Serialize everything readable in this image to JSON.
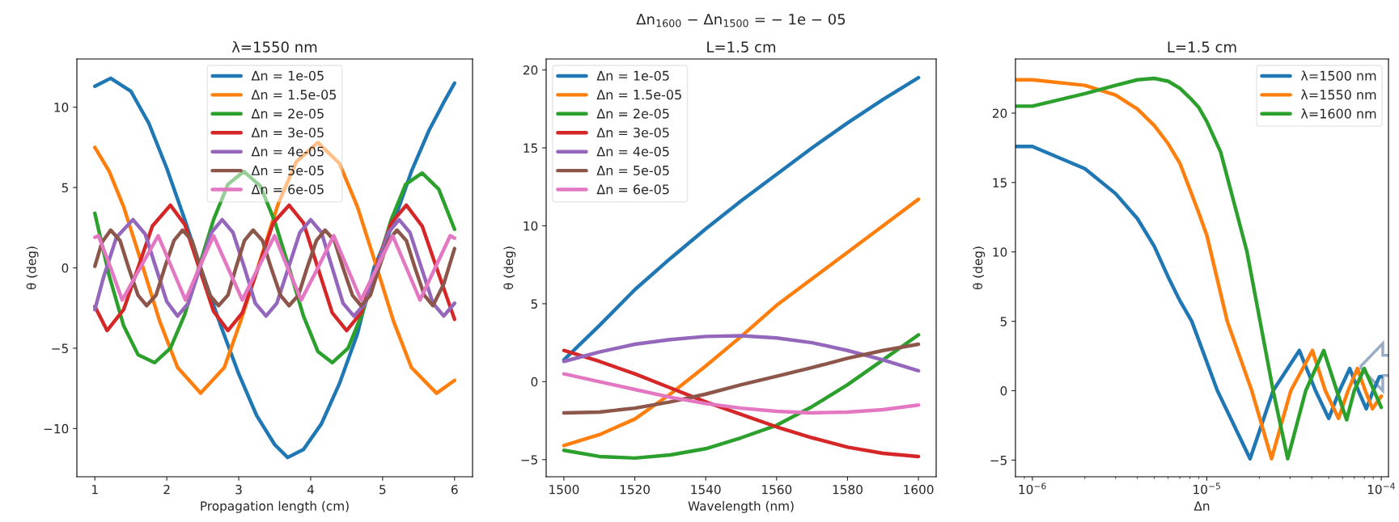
{
  "chart_data": [
    {
      "type": "line",
      "title": "λ=1550 nm",
      "xlabel": "Propagation length (cm)",
      "ylabel": "θ (deg)",
      "xlim": [
        0.75,
        6.25
      ],
      "ylim": [
        -13,
        13
      ],
      "xticks": [
        1,
        2,
        3,
        4,
        5,
        6
      ],
      "yticks": [
        -10,
        -5,
        0,
        5,
        10
      ],
      "legend": "top",
      "series": [
        {
          "name": "Δn = 1e-05",
          "color": "#1f77b4",
          "x": [
            1.0,
            1.22,
            1.5,
            1.75,
            2.0,
            2.25,
            2.47,
            2.75,
            3.0,
            3.25,
            3.5,
            3.68,
            3.9,
            4.15,
            4.4,
            4.65,
            4.88,
            5.15,
            5.4,
            5.65,
            5.85,
            6.0
          ],
          "values": [
            11.3,
            11.8,
            11.0,
            9.0,
            6.2,
            3.0,
            0.0,
            -3.6,
            -6.6,
            -9.2,
            -11.0,
            -11.8,
            -11.3,
            -9.7,
            -7.2,
            -4.1,
            0.0,
            2.8,
            6.0,
            8.6,
            10.3,
            11.5
          ]
        },
        {
          "name": "Δn = 1.5e-05",
          "color": "#ff7f0e",
          "x": [
            1.0,
            1.2,
            1.4,
            1.65,
            1.9,
            2.15,
            2.47,
            2.8,
            3.05,
            3.3,
            3.55,
            3.8,
            4.1,
            4.4,
            4.65,
            4.9,
            5.15,
            5.4,
            5.75,
            6.0
          ],
          "values": [
            7.5,
            6.0,
            3.8,
            0.3,
            -3.3,
            -6.2,
            -7.8,
            -6.2,
            -3.0,
            0.5,
            4.0,
            6.6,
            7.8,
            6.5,
            3.8,
            0.3,
            -3.3,
            -6.2,
            -7.8,
            -7.0
          ]
        },
        {
          "name": "Δn = 2e-05",
          "color": "#2ca02c",
          "x": [
            1.0,
            1.2,
            1.4,
            1.6,
            1.83,
            2.05,
            2.25,
            2.45,
            2.65,
            2.85,
            3.07,
            3.3,
            3.5,
            3.7,
            3.9,
            4.1,
            4.3,
            4.52,
            4.72,
            4.92,
            5.12,
            5.32,
            5.55,
            5.78,
            6.0
          ],
          "values": [
            3.4,
            -0.5,
            -3.6,
            -5.4,
            -5.9,
            -5.0,
            -2.9,
            0.1,
            3.0,
            5.2,
            6.0,
            5.1,
            2.9,
            0.0,
            -3.0,
            -5.2,
            -5.9,
            -5.0,
            -2.8,
            0.1,
            3.0,
            5.2,
            5.9,
            4.9,
            2.4
          ]
        },
        {
          "name": "Δn = 3e-05",
          "color": "#d62728",
          "x": [
            1.0,
            1.17,
            1.4,
            1.6,
            1.8,
            2.05,
            2.25,
            2.45,
            2.65,
            2.85,
            3.05,
            3.27,
            3.48,
            3.7,
            3.9,
            4.1,
            4.3,
            4.5,
            4.7,
            4.91,
            5.12,
            5.33,
            5.55,
            5.75,
            6.0
          ],
          "values": [
            -2.4,
            -3.9,
            -2.6,
            0.0,
            2.6,
            3.9,
            2.7,
            0.0,
            -2.7,
            -3.9,
            -2.8,
            0.0,
            2.8,
            3.9,
            2.8,
            0.0,
            -2.8,
            -3.9,
            -2.8,
            0.0,
            2.8,
            3.9,
            2.6,
            0.0,
            -3.2
          ]
        },
        {
          "name": "Δn = 4e-05",
          "color": "#9467bd",
          "x": [
            1.0,
            1.12,
            1.3,
            1.53,
            1.7,
            1.85,
            2.0,
            2.15,
            2.3,
            2.46,
            2.62,
            2.77,
            2.92,
            3.08,
            3.23,
            3.38,
            3.53,
            3.69,
            3.85,
            4.0,
            4.15,
            4.3,
            4.45,
            4.6,
            4.76,
            4.92,
            5.08,
            5.23,
            5.38,
            5.54,
            5.7,
            5.85,
            6.0
          ],
          "values": [
            -2.6,
            -0.6,
            1.9,
            3.0,
            2.1,
            0.0,
            -2.1,
            -3.0,
            -2.2,
            0.0,
            2.2,
            3.0,
            2.2,
            0.0,
            -2.2,
            -3.0,
            -2.2,
            0.0,
            2.2,
            3.0,
            2.2,
            0.0,
            -2.2,
            -3.0,
            -2.2,
            0.0,
            2.2,
            3.0,
            2.2,
            0.0,
            -2.2,
            -3.0,
            -2.2
          ]
        },
        {
          "name": "Δn = 5e-05",
          "color": "#8c564b",
          "x": [
            1.0,
            1.1,
            1.22,
            1.35,
            1.47,
            1.6,
            1.72,
            1.85,
            1.97,
            2.1,
            2.22,
            2.35,
            2.47,
            2.6,
            2.72,
            2.85,
            2.96,
            3.08,
            3.2,
            3.33,
            3.45,
            3.58,
            3.7,
            3.83,
            3.95,
            4.08,
            4.2,
            4.33,
            4.45,
            4.58,
            4.7,
            4.83,
            4.95,
            5.08,
            5.2,
            5.33,
            5.45,
            5.58,
            5.7,
            5.85,
            6.0
          ],
          "values": [
            0.1,
            1.6,
            2.35,
            1.7,
            0.0,
            -1.7,
            -2.35,
            -1.7,
            0.0,
            1.7,
            2.35,
            1.7,
            0.0,
            -1.7,
            -2.35,
            -1.7,
            0.0,
            1.7,
            2.35,
            1.7,
            0.0,
            -1.7,
            -2.35,
            -1.7,
            0.0,
            1.7,
            2.35,
            1.7,
            0.0,
            -1.7,
            -2.35,
            -1.7,
            0.0,
            1.7,
            2.35,
            1.7,
            0.0,
            -1.7,
            -2.35,
            -1.0,
            1.2
          ]
        },
        {
          "name": "Δn = 6e-05",
          "color": "#e377c2",
          "x": [
            1.0,
            1.05,
            1.22,
            1.38,
            1.63,
            1.88,
            2.07,
            2.26,
            2.45,
            2.65,
            2.85,
            3.05,
            3.27,
            3.5,
            3.68,
            3.87,
            4.1,
            4.32,
            4.51,
            4.7,
            4.92,
            5.14,
            5.33,
            5.52,
            5.73,
            5.94,
            6.0
          ],
          "values": [
            1.9,
            2.0,
            0.0,
            -2.0,
            0.0,
            2.0,
            0.0,
            -2.0,
            0.0,
            2.0,
            0.0,
            -2.0,
            0.0,
            2.0,
            0.0,
            -2.0,
            0.0,
            2.0,
            0.0,
            -2.0,
            0.0,
            2.0,
            0.0,
            -2.0,
            0.0,
            2.0,
            1.85
          ]
        }
      ]
    },
    {
      "type": "line",
      "title": "Δn$_{1600}$ − Δn$_{1500}$ = − 1e − 05",
      "subtitle": "L=1.5 cm",
      "xlabel": "Wavelength (nm)",
      "ylabel": "θ (deg)",
      "xlim": [
        1495,
        1605
      ],
      "ylim": [
        -6.1,
        20.7
      ],
      "xticks": [
        1500,
        1520,
        1540,
        1560,
        1580,
        1600
      ],
      "yticks": [
        -5,
        0,
        5,
        10,
        15,
        20
      ],
      "legend": "top left",
      "x": [
        1500,
        1510,
        1520,
        1530,
        1540,
        1550,
        1560,
        1570,
        1580,
        1590,
        1600
      ],
      "series": [
        {
          "name": "Δn = 1e-05",
          "color": "#1f77b4",
          "values": [
            1.4,
            3.6,
            5.9,
            7.9,
            9.8,
            11.6,
            13.3,
            15.0,
            16.6,
            18.1,
            19.5
          ]
        },
        {
          "name": "Δn = 1.5e-05",
          "color": "#ff7f0e",
          "values": [
            -4.1,
            -3.4,
            -2.4,
            -0.8,
            1.0,
            2.9,
            4.9,
            6.6,
            8.3,
            10.0,
            11.7
          ]
        },
        {
          "name": "Δn = 2e-05",
          "color": "#2ca02c",
          "values": [
            -4.4,
            -4.8,
            -4.9,
            -4.7,
            -4.3,
            -3.6,
            -2.8,
            -1.6,
            -0.2,
            1.4,
            3.0
          ]
        },
        {
          "name": "Δn = 3e-05",
          "color": "#d62728",
          "values": [
            2.0,
            1.3,
            0.5,
            -0.4,
            -1.3,
            -2.1,
            -2.9,
            -3.6,
            -4.2,
            -4.6,
            -4.8
          ]
        },
        {
          "name": "Δn = 4e-05",
          "color": "#9467bd",
          "values": [
            1.3,
            1.9,
            2.4,
            2.7,
            2.9,
            2.95,
            2.8,
            2.5,
            2.0,
            1.4,
            0.7
          ]
        },
        {
          "name": "Δn = 5e-05",
          "color": "#8c564b",
          "values": [
            -2.0,
            -1.95,
            -1.7,
            -1.3,
            -0.8,
            -0.2,
            0.35,
            0.9,
            1.5,
            2.0,
            2.4
          ]
        },
        {
          "name": "Δn = 6e-05",
          "color": "#e377c2",
          "values": [
            0.5,
            0.0,
            -0.5,
            -1.0,
            -1.4,
            -1.7,
            -1.9,
            -2.0,
            -1.95,
            -1.8,
            -1.5
          ]
        }
      ]
    },
    {
      "type": "line",
      "title": "L=1.5 cm",
      "xlabel": "Δn",
      "ylabel": "θ (deg)",
      "log": "x",
      "xlim": [
        8e-07,
        0.00011
      ],
      "ylim": [
        -6.2,
        23.9
      ],
      "xticks": [
        {
          "value": 1e-06,
          "label": "10$^{−6}$"
        },
        {
          "value": 1e-05,
          "label": "10$^{−5}$"
        },
        {
          "value": 0.0001,
          "label": "10$^{−4}$"
        },
        {
          "value": 2e-06,
          "label": null
        },
        {
          "value": 3e-06,
          "label": null
        },
        {
          "value": 4e-06,
          "label": null
        },
        {
          "value": 5e-06,
          "label": null
        },
        {
          "value": 6e-06,
          "label": null
        },
        {
          "value": 7e-06,
          "label": null
        },
        {
          "value": 8e-06,
          "label": null
        },
        {
          "value": 9e-06,
          "label": null
        },
        {
          "value": 2e-05,
          "label": null
        },
        {
          "value": 3e-05,
          "label": null
        },
        {
          "value": 4e-05,
          "label": null
        },
        {
          "value": 5e-05,
          "label": null
        },
        {
          "value": 6e-05,
          "label": null
        },
        {
          "value": 7e-05,
          "label": null
        },
        {
          "value": 8e-05,
          "label": null
        },
        {
          "value": 9e-05,
          "label": null
        },
        {
          "value": 9e-07,
          "label": null
        }
      ],
      "yticks": [
        -5,
        0,
        5,
        10,
        15,
        20
      ],
      "legend": "top right",
      "series": [
        {
          "name": "λ=1500 nm",
          "color": "#1f77b4",
          "x": [
            8e-07,
            1e-06,
            2e-06,
            3e-06,
            4e-06,
            5e-06,
            6e-06,
            7e-06,
            8.2e-06,
            1.15e-05,
            1.77e-05,
            2.4e-05,
            3.39e-05,
            4.2e-05,
            5e-05,
            5.76e-05,
            6.6e-05,
            7.4e-05,
            8.2e-05,
            9e-05,
            9.75e-05,
            0.0001
          ],
          "values": [
            17.6,
            17.6,
            16.0,
            14.2,
            12.4,
            10.4,
            8.2,
            6.5,
            5.0,
            0.0,
            -4.9,
            0.0,
            2.9,
            0.0,
            -2.0,
            0.0,
            1.6,
            0.0,
            -1.3,
            0.0,
            1.0,
            1.0
          ]
        },
        {
          "name": "λ=1550 nm",
          "color": "#ff7f0e",
          "x": [
            8e-07,
            1e-06,
            2e-06,
            3e-06,
            4e-06,
            5e-06,
            6e-06,
            7e-06,
            8e-06,
            9e-06,
            1e-05,
            1.31e-05,
            1.81e-05,
            2.35e-05,
            3.03e-05,
            4.03e-05,
            4.78e-05,
            5.69e-05,
            6.45e-05,
            7.3e-05,
            8.1e-05,
            8.9e-05,
            0.0001
          ],
          "values": [
            22.4,
            22.4,
            22.0,
            21.3,
            20.3,
            19.1,
            17.8,
            16.4,
            14.5,
            12.8,
            11.2,
            5.0,
            0.0,
            -4.9,
            0.0,
            2.9,
            0.0,
            -2.0,
            0.0,
            1.6,
            0.0,
            -1.3,
            -0.4
          ]
        },
        {
          "name": "λ=1600 nm",
          "color": "#2ca02c",
          "x": [
            8e-07,
            1e-06,
            2e-06,
            3e-06,
            4e-06,
            5e-06,
            6e-06,
            7e-06,
            8e-06,
            9e-06,
            1e-05,
            1.2e-05,
            1.7e-05,
            2.02e-05,
            2.4e-05,
            2.91e-05,
            3.69e-05,
            4.68e-05,
            5.56e-05,
            6.33e-05,
            7e-05,
            8e-05,
            0.0001
          ],
          "values": [
            20.5,
            20.5,
            21.4,
            22.0,
            22.4,
            22.5,
            22.3,
            21.8,
            21.1,
            20.4,
            19.4,
            17.2,
            10.0,
            5.0,
            0.0,
            -4.9,
            0.0,
            2.9,
            0.0,
            -2.1,
            0.0,
            1.6,
            -1.2
          ]
        }
      ]
    }
  ]
}
